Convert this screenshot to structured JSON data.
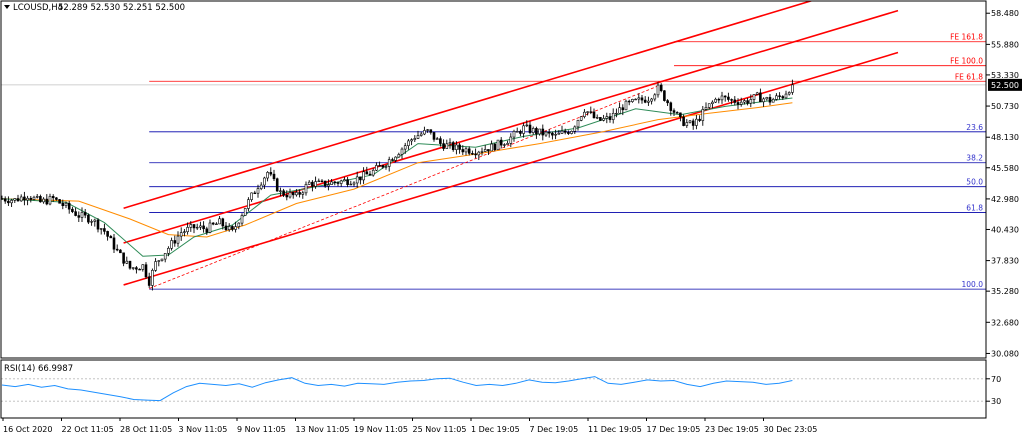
{
  "header": {
    "symbol": "LCOUSD,H4",
    "ohlc": "52.289 52.530 52.251 52.500",
    "price_tag": "52.500",
    "menu_icon": "dropdown-triangle-icon"
  },
  "colors": {
    "channel": "#ff0000",
    "fib": "#0000aa",
    "fib_label": "#3333cc",
    "expansion": "#ff0000",
    "candle": "#000000",
    "ma_fast": "#2e8b57",
    "ma_slow": "#ff8c00",
    "rsi": "#1e90ff",
    "price_line": "#c0c0c0",
    "price_tag_bg": "#000000"
  },
  "chart_data": [
    {
      "type": "candlestick",
      "title": "LCOUSD,H4",
      "y_ticks": [
        "58.480",
        "55.880",
        "53.330",
        "50.730",
        "48.130",
        "45.580",
        "42.980",
        "40.430",
        "37.830",
        "35.280",
        "32.680",
        "30.080"
      ],
      "x_ticks": [
        "16 Oct 2020",
        "22 Oct 11:05",
        "28 Oct 11:05",
        "3 Nov 11:05",
        "9 Nov 11:05",
        "13 Nov 11:05",
        "19 Nov 11:05",
        "25 Nov 11:05",
        "1 Dec 19:05",
        "7 Dec 19:05",
        "11 Dec 19:05",
        "17 Dec 19:05",
        "23 Dec 19:05",
        "30 Dec 23:05"
      ],
      "ylim": [
        29.7,
        59.5
      ],
      "last_price": 52.5,
      "price_path": [
        {
          "x": 0,
          "y": 43.0
        },
        {
          "x": 4,
          "y": 42.9
        },
        {
          "x": 8,
          "y": 43.3
        },
        {
          "x": 12,
          "y": 42.7
        },
        {
          "x": 16,
          "y": 43.0
        },
        {
          "x": 20,
          "y": 42.3
        },
        {
          "x": 24,
          "y": 41.6
        },
        {
          "x": 28,
          "y": 41.3
        },
        {
          "x": 32,
          "y": 40.3
        },
        {
          "x": 36,
          "y": 38.6
        },
        {
          "x": 40,
          "y": 37.2
        },
        {
          "x": 44,
          "y": 37.4
        },
        {
          "x": 46,
          "y": 36.1
        },
        {
          "x": 48,
          "y": 37.6
        },
        {
          "x": 52,
          "y": 38.9
        },
        {
          "x": 56,
          "y": 40.2
        },
        {
          "x": 60,
          "y": 40.6
        },
        {
          "x": 64,
          "y": 40.5
        },
        {
          "x": 68,
          "y": 41.0
        },
        {
          "x": 72,
          "y": 40.2
        },
        {
          "x": 76,
          "y": 42.3
        },
        {
          "x": 80,
          "y": 44.1
        },
        {
          "x": 83,
          "y": 45.2
        },
        {
          "x": 87,
          "y": 43.5
        },
        {
          "x": 92,
          "y": 43.2
        },
        {
          "x": 96,
          "y": 44.3
        },
        {
          "x": 100,
          "y": 44.2
        },
        {
          "x": 105,
          "y": 44.4
        },
        {
          "x": 110,
          "y": 44.6
        },
        {
          "x": 115,
          "y": 45.1
        },
        {
          "x": 120,
          "y": 46.0
        },
        {
          "x": 125,
          "y": 47.2
        },
        {
          "x": 129,
          "y": 48.2
        },
        {
          "x": 133,
          "y": 48.6
        },
        {
          "x": 137,
          "y": 47.6
        },
        {
          "x": 142,
          "y": 47.2
        },
        {
          "x": 148,
          "y": 47.0
        },
        {
          "x": 153,
          "y": 47.3
        },
        {
          "x": 158,
          "y": 47.9
        },
        {
          "x": 163,
          "y": 48.9
        },
        {
          "x": 168,
          "y": 48.5
        },
        {
          "x": 173,
          "y": 48.2
        },
        {
          "x": 178,
          "y": 48.8
        },
        {
          "x": 182,
          "y": 50.5
        },
        {
          "x": 186,
          "y": 49.5
        },
        {
          "x": 190,
          "y": 49.7
        },
        {
          "x": 194,
          "y": 50.7
        },
        {
          "x": 198,
          "y": 51.1
        },
        {
          "x": 202,
          "y": 51.4
        },
        {
          "x": 205,
          "y": 52.2
        },
        {
          "x": 209,
          "y": 50.7
        },
        {
          "x": 212,
          "y": 49.5
        },
        {
          "x": 216,
          "y": 49.1
        },
        {
          "x": 220,
          "y": 50.5
        },
        {
          "x": 224,
          "y": 51.5
        },
        {
          "x": 228,
          "y": 51.2
        },
        {
          "x": 232,
          "y": 51.1
        },
        {
          "x": 236,
          "y": 51.5
        },
        {
          "x": 240,
          "y": 51.2
        },
        {
          "x": 244,
          "y": 51.6
        },
        {
          "x": 247,
          "y": 52.5
        }
      ],
      "ma_fast_path": [
        {
          "x": 0,
          "y": 43.0
        },
        {
          "x": 20,
          "y": 42.7
        },
        {
          "x": 32,
          "y": 41.0
        },
        {
          "x": 44,
          "y": 38.2
        },
        {
          "x": 52,
          "y": 38.3
        },
        {
          "x": 60,
          "y": 39.8
        },
        {
          "x": 72,
          "y": 40.8
        },
        {
          "x": 84,
          "y": 43.3
        },
        {
          "x": 100,
          "y": 44.1
        },
        {
          "x": 116,
          "y": 45.0
        },
        {
          "x": 130,
          "y": 47.6
        },
        {
          "x": 148,
          "y": 47.3
        },
        {
          "x": 163,
          "y": 48.2
        },
        {
          "x": 180,
          "y": 48.9
        },
        {
          "x": 198,
          "y": 50.5
        },
        {
          "x": 212,
          "y": 50.0
        },
        {
          "x": 226,
          "y": 50.7
        },
        {
          "x": 247,
          "y": 51.4
        }
      ],
      "ma_slow_path": [
        {
          "x": 0,
          "y": 43.0
        },
        {
          "x": 24,
          "y": 42.8
        },
        {
          "x": 40,
          "y": 41.3
        },
        {
          "x": 52,
          "y": 40.0
        },
        {
          "x": 64,
          "y": 39.8
        },
        {
          "x": 76,
          "y": 40.8
        },
        {
          "x": 92,
          "y": 42.6
        },
        {
          "x": 110,
          "y": 43.8
        },
        {
          "x": 130,
          "y": 46.0
        },
        {
          "x": 150,
          "y": 46.8
        },
        {
          "x": 168,
          "y": 47.6
        },
        {
          "x": 188,
          "y": 48.6
        },
        {
          "x": 205,
          "y": 49.6
        },
        {
          "x": 220,
          "y": 50.1
        },
        {
          "x": 236,
          "y": 50.6
        },
        {
          "x": 247,
          "y": 51.0
        }
      ],
      "fibonacci": [
        {
          "label": "23.6",
          "value": 48.58
        },
        {
          "label": "38.2",
          "value": 46.0
        },
        {
          "label": "50.0",
          "value": 44.0
        },
        {
          "label": "61.8",
          "value": 41.85
        },
        {
          "label": "100.0",
          "value": 35.45
        }
      ],
      "expansion": [
        {
          "label": "FE 161.8",
          "value": 56.1
        },
        {
          "label": "FE 100.0",
          "value": 54.1
        },
        {
          "label": "FE 61.8",
          "value": 52.8
        }
      ],
      "channel": {
        "start_x": 38,
        "end_x": 280,
        "upper": [
          42.2,
          61.7
        ],
        "middle": [
          39.3,
          58.7
        ],
        "lower": [
          35.8,
          55.2
        ]
      },
      "trend_dashed": [
        {
          "x": 46,
          "y": 35.5
        },
        {
          "x": 205,
          "y": 52.4
        }
      ]
    },
    {
      "type": "line",
      "title": "RSI(14) 66.9987",
      "y_ticks": [
        "70",
        "30"
      ],
      "ylim": [
        0,
        100
      ],
      "levels": [
        70,
        30
      ],
      "values": [
        59,
        56,
        60,
        55,
        58,
        52,
        50,
        46,
        42,
        38,
        33,
        32,
        31,
        45,
        56,
        62,
        60,
        58,
        61,
        55,
        63,
        68,
        72,
        62,
        58,
        60,
        57,
        62,
        61,
        60,
        64,
        66,
        67,
        70,
        71,
        64,
        58,
        60,
        58,
        62,
        68,
        64,
        63,
        66,
        70,
        74,
        62,
        60,
        64,
        68,
        66,
        67,
        60,
        56,
        62,
        66,
        65,
        64,
        60,
        62,
        67
      ]
    }
  ]
}
